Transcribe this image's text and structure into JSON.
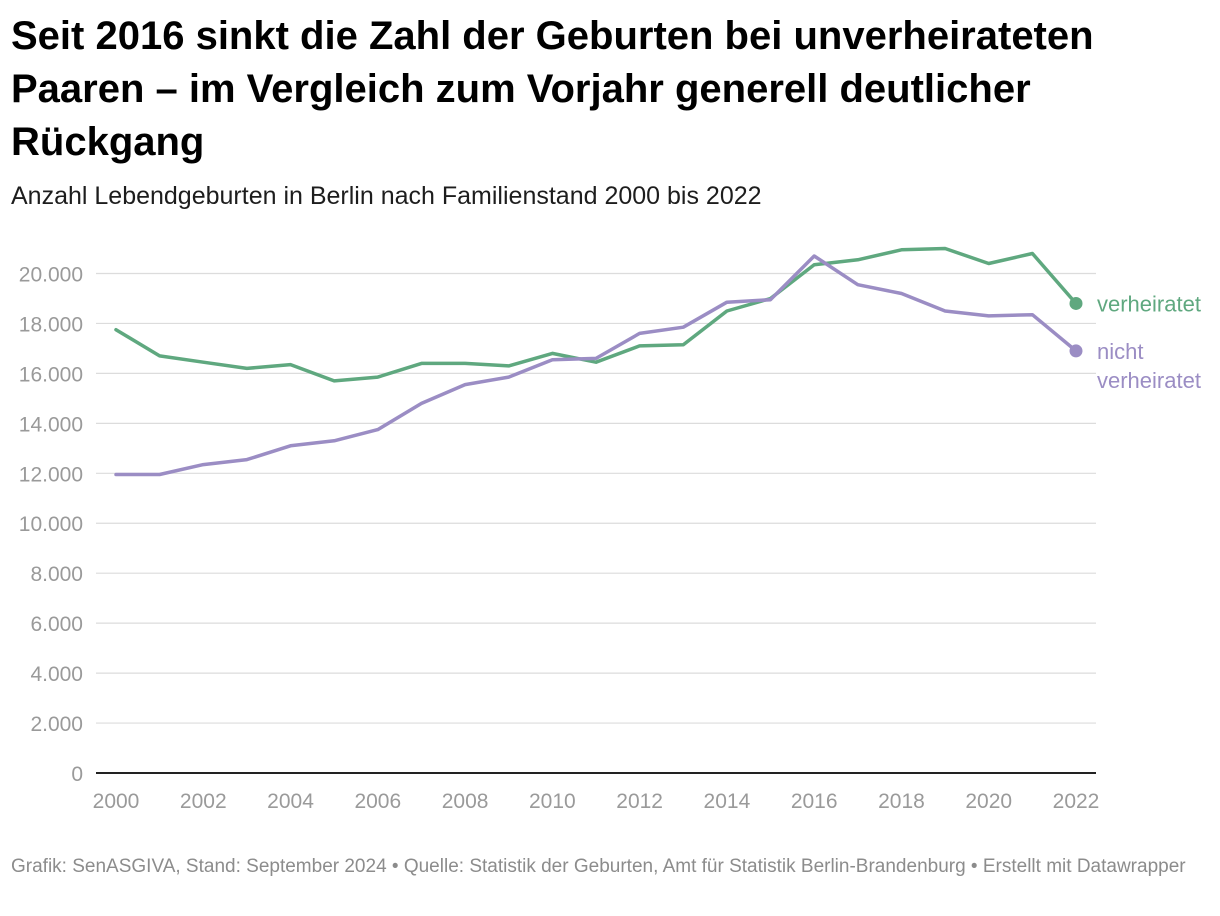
{
  "title": "Seit 2016 sinkt die Zahl der Geburten bei unverheirateten Paaren – im Vergleich zum Vorjahr generell deutlicher Rückgang",
  "subtitle": "Anzahl Lebendgeburten in Berlin nach Familienstand 2000 bis 2022",
  "footer": {
    "credit": "Grafik: SenASGIVA, Stand: September 2024 • Quelle: Statistik der Geburten, Amt für Statistik Berlin-Brandenburg • Erstellt mit Datawrapper"
  },
  "chart_data": {
    "type": "line",
    "x": [
      2000,
      2001,
      2002,
      2003,
      2004,
      2005,
      2006,
      2007,
      2008,
      2009,
      2010,
      2011,
      2012,
      2013,
      2014,
      2015,
      2016,
      2017,
      2018,
      2019,
      2020,
      2021,
      2022
    ],
    "x_tick_labels": [
      "2000",
      "2002",
      "2004",
      "2006",
      "2008",
      "2010",
      "2012",
      "2014",
      "2016",
      "2018",
      "2020",
      "2022"
    ],
    "x_ticks": [
      2000,
      2002,
      2004,
      2006,
      2008,
      2010,
      2012,
      2014,
      2016,
      2018,
      2020,
      2022
    ],
    "y_tick_labels": [
      "0",
      "2.000",
      "4.000",
      "6.000",
      "8.000",
      "10.000",
      "12.000",
      "14.000",
      "16.000",
      "18.000",
      "20.000"
    ],
    "y_ticks": [
      0,
      2000,
      4000,
      6000,
      8000,
      10000,
      12000,
      14000,
      16000,
      18000,
      20000
    ],
    "xlim": [
      2000,
      2022
    ],
    "ylim": [
      0,
      20500
    ],
    "grid": "horizontal",
    "series": [
      {
        "name": "verheiratet",
        "color": "#5fa87f",
        "values": [
          17750,
          16700,
          16450,
          16200,
          16350,
          15700,
          15850,
          16400,
          16400,
          16300,
          16800,
          16450,
          17100,
          17150,
          18500,
          19000,
          20350,
          20550,
          20950,
          21000,
          20400,
          20800,
          18800
        ]
      },
      {
        "name": "nicht verheiratet",
        "label_lines": [
          "nicht",
          "verheiratet"
        ],
        "color": "#9b8dc4",
        "values": [
          11950,
          11950,
          12350,
          12550,
          13100,
          13300,
          13750,
          14800,
          15550,
          15850,
          16550,
          16600,
          17600,
          17850,
          18850,
          18950,
          20700,
          19550,
          19200,
          18500,
          18300,
          18350,
          16900
        ]
      }
    ]
  }
}
